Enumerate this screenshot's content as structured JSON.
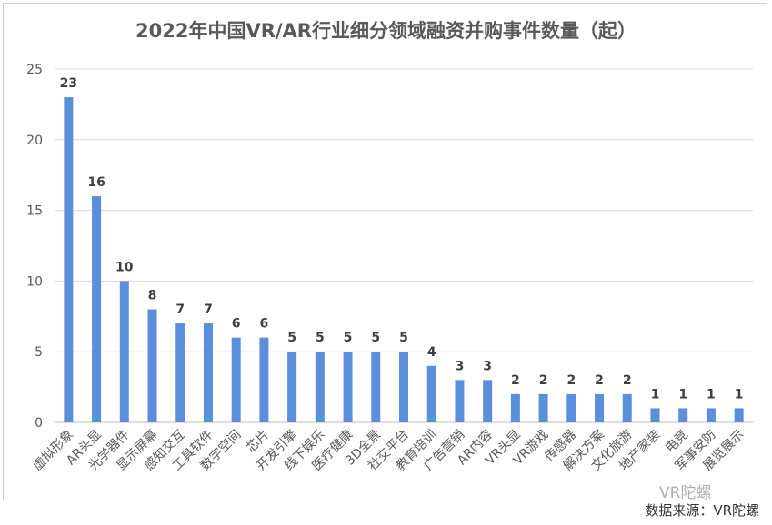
{
  "chart_data": {
    "type": "bar",
    "title": "2022年中国VR/AR行业细分领域融资并购事件数量（起）",
    "categories": [
      "虚拟形象",
      "AR头显",
      "光学器件",
      "显示屏幕",
      "感知交互",
      "工具软件",
      "数字空间",
      "芯片",
      "开发引擎",
      "线下娱乐",
      "医疗健康",
      "3D全景",
      "社交平台",
      "教育培训",
      "广告营销",
      "AR内容",
      "VR头显",
      "VR游戏",
      "传感器",
      "解决方案",
      "文化旅游",
      "地产家装",
      "电竞",
      "军事安防",
      "展览展示"
    ],
    "values": [
      23,
      16,
      10,
      8,
      7,
      7,
      6,
      6,
      5,
      5,
      5,
      5,
      5,
      4,
      3,
      3,
      2,
      2,
      2,
      2,
      2,
      1,
      1,
      1,
      1
    ],
    "yticks": [
      0,
      5,
      10,
      15,
      20,
      25
    ],
    "ylim": [
      0,
      25
    ],
    "xlabel": "",
    "ylabel": "",
    "grid": true,
    "bar_color": "#5b8fdd"
  },
  "source_note": "数据来源：VR陀螺",
  "watermark": "VR陀螺"
}
